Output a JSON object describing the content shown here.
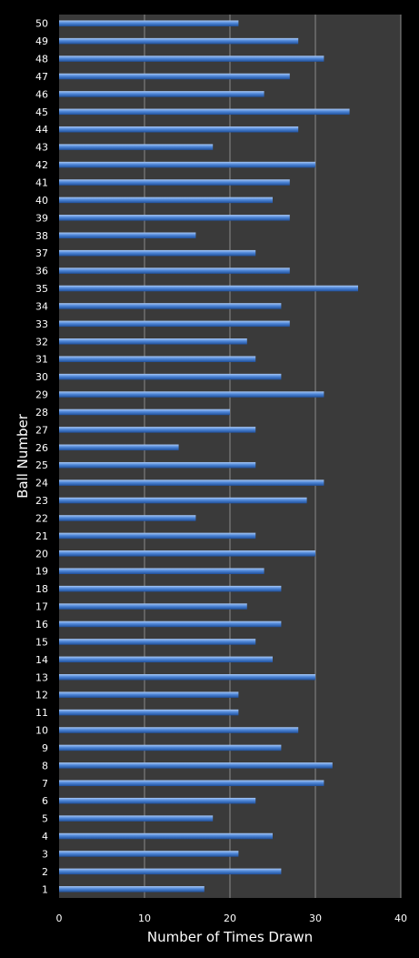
{
  "chart_data": {
    "type": "bar",
    "orientation": "horizontal",
    "title": "",
    "xlabel": "Number of Times Drawn",
    "ylabel": "Ball Number",
    "xlim": [
      0,
      40
    ],
    "x_ticks": [
      0,
      10,
      20,
      30,
      40
    ],
    "grid": "vertical",
    "legend": "none",
    "categories": [
      "1",
      "2",
      "3",
      "4",
      "5",
      "6",
      "7",
      "8",
      "9",
      "10",
      "11",
      "12",
      "13",
      "14",
      "15",
      "16",
      "17",
      "18",
      "19",
      "20",
      "21",
      "22",
      "23",
      "24",
      "25",
      "26",
      "27",
      "28",
      "29",
      "30",
      "31",
      "32",
      "33",
      "34",
      "35",
      "36",
      "37",
      "38",
      "39",
      "40",
      "41",
      "42",
      "43",
      "44",
      "45",
      "46",
      "47",
      "48",
      "49",
      "50"
    ],
    "values": [
      17,
      26,
      21,
      25,
      18,
      23,
      31,
      32,
      26,
      28,
      21,
      21,
      30,
      25,
      23,
      26,
      22,
      26,
      24,
      30,
      23,
      16,
      29,
      31,
      23,
      14,
      23,
      20,
      31,
      26,
      23,
      22,
      27,
      26,
      35,
      27,
      23,
      16,
      27,
      25,
      27,
      30,
      18,
      28,
      34,
      24,
      27,
      31,
      28,
      21
    ],
    "colors": {
      "background": "#000000",
      "plot_area": "#3a3a3a",
      "gridline": "#8a8a8a",
      "bar_dark": "#1f4f9a",
      "bar_mid": "#4f87d8",
      "bar_light": "#a8c8f5",
      "text": "#ffffff"
    }
  }
}
